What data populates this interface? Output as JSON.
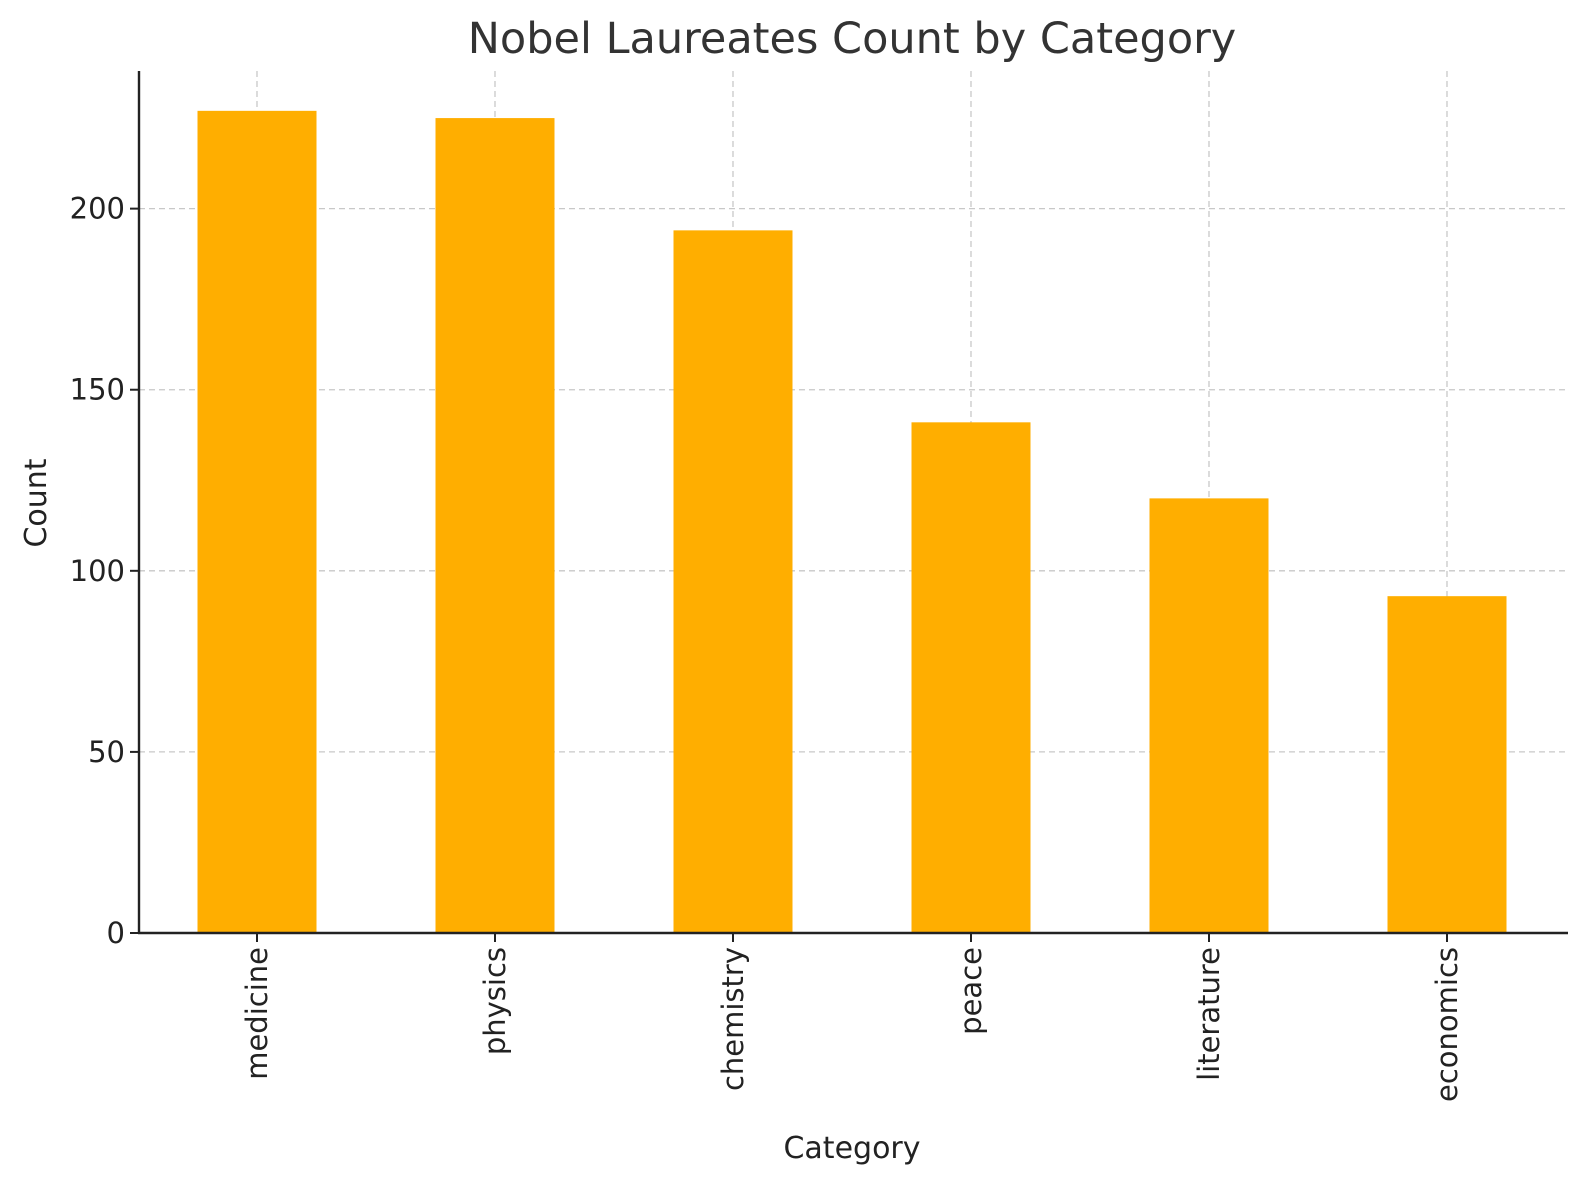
{
  "chart_data": {
    "type": "bar",
    "title": "Nobel Laureates Count by Category",
    "xlabel": "Category",
    "ylabel": "Count",
    "categories": [
      "medicine",
      "physics",
      "chemistry",
      "peace",
      "literature",
      "economics"
    ],
    "values": [
      227,
      225,
      194,
      141,
      120,
      93
    ],
    "ylim": [
      0,
      238
    ],
    "yticks": [
      0,
      50,
      100,
      150,
      200
    ],
    "grid": true,
    "legend": "none",
    "bar_color": "#FFAE00"
  }
}
